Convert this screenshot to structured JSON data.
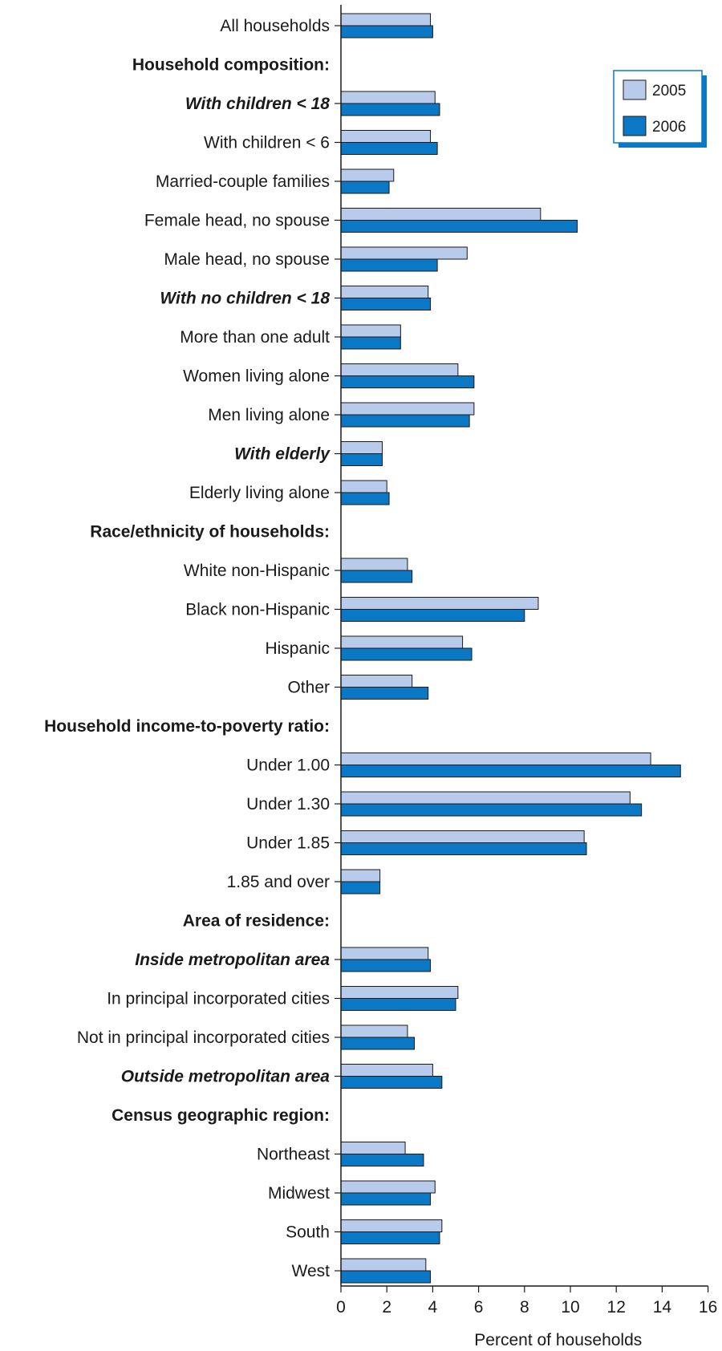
{
  "chart_data": {
    "type": "bar",
    "orientation": "horizontal",
    "xlabel": "Percent of households",
    "xlim": [
      0,
      16
    ],
    "xticks": [
      0,
      2,
      4,
      6,
      8,
      10,
      12,
      14,
      16
    ],
    "grid": false,
    "legend_position": "top-right",
    "series": [
      {
        "name": "2005",
        "color": "#b8cbea"
      },
      {
        "name": "2006",
        "color": "#0a78c4"
      }
    ],
    "rows": [
      {
        "label": "All households",
        "style": "normal",
        "values": [
          3.9,
          4.0
        ]
      },
      {
        "label": "Household composition:",
        "style": "header"
      },
      {
        "label": "With children < 18",
        "style": "subtotal",
        "values": [
          4.1,
          4.3
        ]
      },
      {
        "label": "With children < 6",
        "style": "normal",
        "values": [
          3.9,
          4.2
        ]
      },
      {
        "label": "Married-couple families",
        "style": "normal",
        "values": [
          2.3,
          2.1
        ]
      },
      {
        "label": "Female head, no spouse",
        "style": "normal",
        "values": [
          8.7,
          10.3
        ]
      },
      {
        "label": "Male head, no spouse",
        "style": "normal",
        "values": [
          5.5,
          4.2
        ]
      },
      {
        "label": "With no children < 18",
        "style": "subtotal",
        "values": [
          3.8,
          3.9
        ]
      },
      {
        "label": "More than one adult",
        "style": "normal",
        "values": [
          2.6,
          2.6
        ]
      },
      {
        "label": "Women living alone",
        "style": "normal",
        "values": [
          5.1,
          5.8
        ]
      },
      {
        "label": "Men living alone",
        "style": "normal",
        "values": [
          5.8,
          5.6
        ]
      },
      {
        "label": "With elderly",
        "style": "subtotal",
        "values": [
          1.8,
          1.8
        ]
      },
      {
        "label": "Elderly living alone",
        "style": "normal",
        "values": [
          2.0,
          2.1
        ]
      },
      {
        "label": "Race/ethnicity of households:",
        "style": "header"
      },
      {
        "label": "White non-Hispanic",
        "style": "normal",
        "values": [
          2.9,
          3.1
        ]
      },
      {
        "label": "Black non-Hispanic",
        "style": "normal",
        "values": [
          8.6,
          8.0
        ]
      },
      {
        "label": "Hispanic",
        "style": "normal",
        "values": [
          5.3,
          5.7
        ]
      },
      {
        "label": "Other",
        "style": "normal",
        "values": [
          3.1,
          3.8
        ]
      },
      {
        "label": "Household income-to-poverty ratio:",
        "style": "header"
      },
      {
        "label": "Under 1.00",
        "style": "normal",
        "values": [
          13.5,
          14.8
        ]
      },
      {
        "label": "Under 1.30",
        "style": "normal",
        "values": [
          12.6,
          13.1
        ]
      },
      {
        "label": "Under 1.85",
        "style": "normal",
        "values": [
          10.6,
          10.7
        ]
      },
      {
        "label": "1.85 and over",
        "style": "normal",
        "values": [
          1.7,
          1.7
        ]
      },
      {
        "label": "Area of residence:",
        "style": "header"
      },
      {
        "label": "Inside metropolitan area",
        "style": "subtotal",
        "values": [
          3.8,
          3.9
        ]
      },
      {
        "label": "In principal incorporated cities",
        "style": "normal",
        "values": [
          5.1,
          5.0
        ]
      },
      {
        "label": "Not in principal incorporated cities",
        "style": "normal",
        "values": [
          2.9,
          3.2
        ]
      },
      {
        "label": "Outside metropolitan area",
        "style": "subtotal",
        "values": [
          4.0,
          4.4
        ]
      },
      {
        "label": "Census geographic region:",
        "style": "header"
      },
      {
        "label": "Northeast",
        "style": "normal",
        "values": [
          2.8,
          3.6
        ]
      },
      {
        "label": "Midwest",
        "style": "normal",
        "values": [
          4.1,
          3.9
        ]
      },
      {
        "label": "South",
        "style": "normal",
        "values": [
          4.4,
          4.3
        ]
      },
      {
        "label": "West",
        "style": "normal",
        "values": [
          3.7,
          3.9
        ]
      }
    ]
  }
}
